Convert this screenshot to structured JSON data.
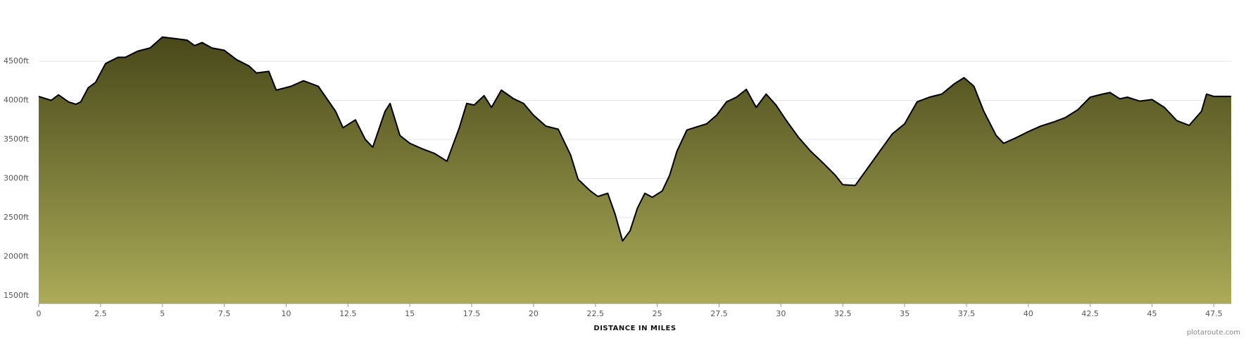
{
  "chart_data": {
    "type": "area",
    "x_label": "DISTANCE IN MILES",
    "credit": "plotaroute.com",
    "x": [
      0,
      0.5,
      0.8,
      1.2,
      1.5,
      1.7,
      2,
      2.3,
      2.7,
      3.2,
      3.5,
      4,
      4.5,
      5,
      5.5,
      6,
      6.3,
      6.6,
      7,
      7.5,
      8,
      8.5,
      8.8,
      9.3,
      9.6,
      10.2,
      10.7,
      11.3,
      12,
      12.3,
      12.8,
      13.2,
      13.5,
      14,
      14.2,
      14.6,
      15,
      15.5,
      16,
      16.5,
      17,
      17.3,
      17.6,
      18,
      18.3,
      18.7,
      19.2,
      19.6,
      20,
      20.5,
      21,
      21.5,
      21.8,
      22.3,
      22.6,
      23,
      23.3,
      23.6,
      23.9,
      24.2,
      24.5,
      24.8,
      25.2,
      25.5,
      25.8,
      26.2,
      26.7,
      27,
      27.4,
      27.8,
      28.2,
      28.6,
      29,
      29.4,
      29.8,
      30.2,
      30.7,
      31.2,
      31.7,
      32.2,
      32.5,
      33,
      33.5,
      34,
      34.5,
      35,
      35.5,
      36,
      36.5,
      37,
      37.4,
      37.8,
      38.2,
      38.7,
      39,
      39.5,
      40,
      40.5,
      41,
      41.5,
      42,
      42.5,
      43,
      43.3,
      43.7,
      44,
      44.5,
      45,
      45.5,
      46,
      46.5,
      47,
      47.2,
      47.5,
      48.2
    ],
    "series": [
      {
        "color": "#000000",
        "values": [
          4050,
          4000,
          4070,
          3980,
          3950,
          3980,
          4160,
          4230,
          4470,
          4550,
          4550,
          4630,
          4670,
          4810,
          4790,
          4770,
          4700,
          4740,
          4670,
          4640,
          4520,
          4440,
          4350,
          4370,
          4130,
          4180,
          4250,
          4180,
          3860,
          3650,
          3750,
          3500,
          3400,
          3860,
          3960,
          3550,
          3450,
          3380,
          3320,
          3220,
          3650,
          3960,
          3940,
          4060,
          3910,
          4130,
          4020,
          3960,
          3810,
          3670,
          3630,
          3300,
          2990,
          2840,
          2770,
          2810,
          2540,
          2200,
          2330,
          2620,
          2810,
          2760,
          2840,
          3040,
          3350,
          3620,
          3670,
          3700,
          3810,
          3980,
          4040,
          4140,
          3910,
          4080,
          3940,
          3750,
          3530,
          3350,
          3200,
          3040,
          2920,
          2910,
          3130,
          3350,
          3570,
          3700,
          3980,
          4040,
          4080,
          4210,
          4290,
          4180,
          3860,
          3550,
          3450,
          3520,
          3600,
          3670,
          3720,
          3780,
          3880,
          4040,
          4080,
          4100,
          4020,
          4040,
          3990,
          4010,
          3910,
          3740,
          3680,
          3860,
          4080,
          4050,
          4050
        ]
      }
    ],
    "fill_top": "#48481a",
    "fill_bottom": "#abab58",
    "xlim": [
      0,
      48.2
    ],
    "xticks": [
      0,
      2.5,
      5,
      7.5,
      10,
      12.5,
      15,
      17.5,
      20,
      22.5,
      25,
      27.5,
      30,
      32.5,
      35,
      37.5,
      40,
      42.5,
      45,
      47.5
    ],
    "ylim": [
      1400,
      5000
    ],
    "yticks": [
      {
        "value": 1500,
        "label": "1500ft"
      },
      {
        "value": 2000,
        "label": "2000ft"
      },
      {
        "value": 2500,
        "label": "2500ft"
      },
      {
        "value": 3000,
        "label": "3000ft"
      },
      {
        "value": 3500,
        "label": "3500ft"
      },
      {
        "value": 4000,
        "label": "4000ft"
      },
      {
        "value": 4500,
        "label": "4500ft"
      }
    ],
    "grid": true
  }
}
